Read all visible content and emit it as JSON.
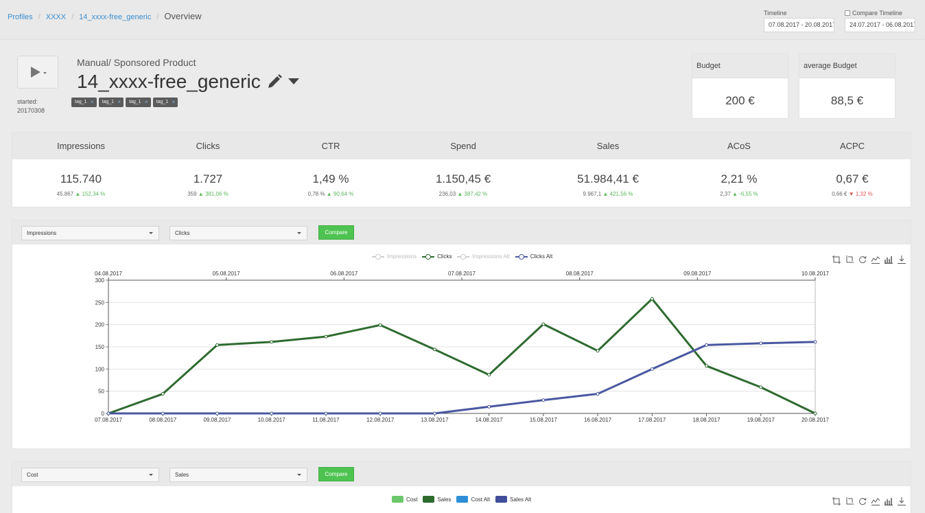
{
  "breadcrumb": {
    "items": [
      "Profiles",
      "XXXX",
      "14_xxxx-free_generic"
    ],
    "current": "Overview"
  },
  "timeline": {
    "label": "Timeline",
    "value": "07.08.2017 - 20.08.2017",
    "compare_label": "Compare Timeline",
    "compare_value": "24.07.2017 - 06.08.2017"
  },
  "campaign": {
    "type": "Manual/ Sponsored Product",
    "name": "14_xxxx-free_generic",
    "started_label": "started:",
    "started_value": "20170308",
    "tags": [
      "tag_1",
      "tag_1",
      "tag_1",
      "tag_1"
    ]
  },
  "budget": {
    "label": "Budget",
    "value": "200 €",
    "avg_label": "average Budget",
    "avg_value": "88,5 €"
  },
  "kpis": [
    {
      "name": "Impressions",
      "value": "115.740",
      "prev": "45.867",
      "dir": "up",
      "change": "152,34 %"
    },
    {
      "name": "Clicks",
      "value": "1.727",
      "prev": "359",
      "dir": "up",
      "change": "381,06 %"
    },
    {
      "name": "CTR",
      "value": "1,49 %",
      "prev": "0,78 %",
      "dir": "up",
      "change": "90,64 %"
    },
    {
      "name": "Spend",
      "value": "1.150,45 €",
      "prev": "236,03",
      "dir": "up",
      "change": "387,42 %"
    },
    {
      "name": "Sales",
      "value": "51.984,41 €",
      "prev": "9.967,1",
      "dir": "up",
      "change": "421,56 %"
    },
    {
      "name": "ACoS",
      "value": "2,21 %",
      "prev": "2,37",
      "dir": "up",
      "change": "-6,55 %"
    },
    {
      "name": "ACPC",
      "value": "0,67 €",
      "prev": "0,66 €",
      "dir": "down",
      "change": "1,32 %"
    }
  ],
  "colors": {
    "green_up": "#5cb85c",
    "red_down": "#d9534f",
    "clicks_line": "#2e6b2f",
    "clicks_alt_line": "#4a58a0",
    "cost": "#6cc86c",
    "sales": "#2e6b2f",
    "cost_alt": "#2e8fd6",
    "sales_alt": "#3f4f9a",
    "compare_btn": "#4ec351"
  },
  "panel1": {
    "select1": "Impressions",
    "select2": "Clicks",
    "compare_label": "Compare",
    "toolbox_icons": [
      "zoom-icon",
      "zoom-reset-icon",
      "restore-icon",
      "line-icon",
      "bar-icon",
      "download-icon"
    ]
  },
  "panel2": {
    "select1": "Cost",
    "select2": "Sales",
    "compare_label": "Compare",
    "legend": [
      "Cost",
      "Sales",
      "Cost Alt",
      "Sales Alt"
    ]
  },
  "chart_data": [
    {
      "type": "line",
      "legend": [
        {
          "name": "Impressions",
          "active": false
        },
        {
          "name": "Clicks",
          "active": true
        },
        {
          "name": "Impressions Alt",
          "active": false
        },
        {
          "name": "Clicks Alt",
          "active": true
        }
      ],
      "x": [
        "07.08.2017",
        "08.08.2017",
        "09.08.2017",
        "10.08.2017",
        "11.08.2017",
        "12.08.2017",
        "13.08.2017",
        "14.08.2017",
        "15.08.2017",
        "16.08.2017",
        "17.08.2017",
        "18.08.2017",
        "19.08.2017",
        "20.08.2017"
      ],
      "x2": [
        "04.08.2017",
        "05.08.2017",
        "06.08.2017",
        "07.08.2017",
        "08.08.2017",
        "09.08.2017",
        "10.08.2017"
      ],
      "y_ticks": [
        0,
        50,
        100,
        150,
        200,
        250,
        300
      ],
      "ylim": [
        0,
        300
      ],
      "grid": true,
      "series": [
        {
          "name": "Clicks",
          "values": [
            0,
            44,
            154,
            161,
            173,
            199,
            144,
            87,
            201,
            141,
            258,
            107,
            59,
            0
          ]
        },
        {
          "name": "Clicks Alt",
          "values": [
            0,
            0,
            0,
            0,
            0,
            0,
            0,
            15,
            30,
            44,
            100,
            154,
            158,
            161
          ]
        }
      ]
    }
  ]
}
